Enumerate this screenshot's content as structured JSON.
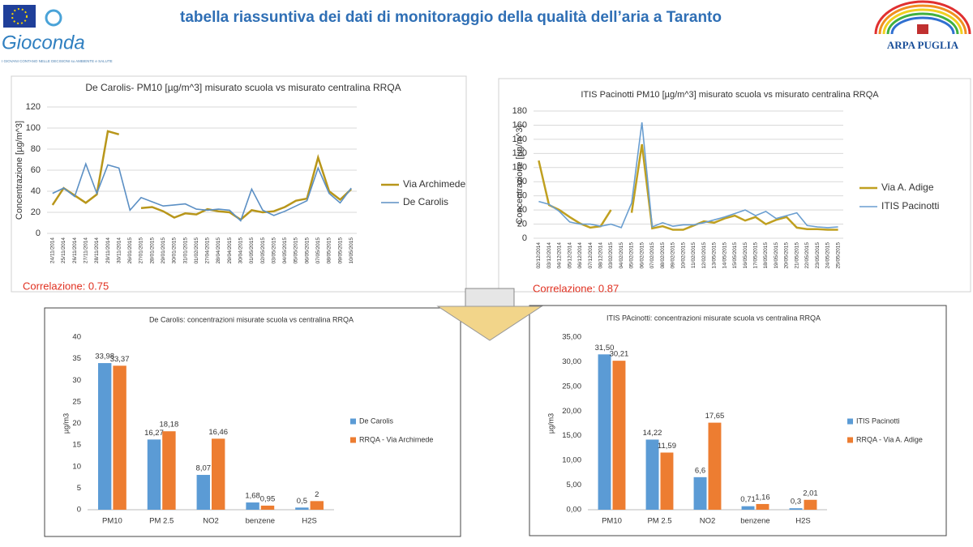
{
  "header": {
    "title": "tabella riassuntiva dei dati di monitoraggio della qualità dell’aria a Taranto",
    "logo_left": "Gioconda",
    "logo_left_tagline": "I GIOVANI CONTANO NELLE DECISIONI su AMBIENTE e SALUTE",
    "logo_right": "ARPA PUGLIA"
  },
  "chart_data": [
    {
      "type": "line",
      "title": "De Carolis- PM10 [µg/m^3] misurato scuola vs  misurato centralina RRQA",
      "y_label": "Concentrazione  [µg/m^3]",
      "annotation": "Correlazione: 0.75",
      "grid": true,
      "legend": "right",
      "categories": [
        "24/11/2014",
        "25/11/2014",
        "26/11/2014",
        "27/11/2014",
        "28/11/2014",
        "29/11/2014",
        "30/11/2014",
        "26/01/2015",
        "27/01/2015",
        "28/01/2015",
        "29/01/2015",
        "30/01/2015",
        "31/01/2015",
        "01/02/2015",
        "27/04/2015",
        "28/04/2015",
        "29/04/2015",
        "30/04/2015",
        "01/05/2015",
        "02/05/2015",
        "03/05/2015",
        "04/05/2015",
        "05/05/2015",
        "06/05/2015",
        "07/05/2015",
        "08/05/2015",
        "09/05/2015",
        "10/05/2015"
      ],
      "series": [
        {
          "name": "Via Archimede",
          "color": "#b8961a",
          "values": [
            27,
            43,
            36,
            29,
            37,
            97,
            94,
            null,
            24,
            25,
            21,
            15,
            19,
            18,
            23,
            21,
            20,
            13,
            22,
            20,
            21,
            25,
            31,
            33,
            72,
            40,
            32,
            42
          ]
        },
        {
          "name": "De Carolis",
          "color": "#5b8fc4",
          "values": [
            38,
            43,
            35,
            66,
            38,
            65,
            62,
            22,
            34,
            30,
            26,
            27,
            28,
            23,
            22,
            23,
            22,
            12,
            42,
            22,
            17,
            21,
            26,
            31,
            62,
            38,
            29,
            43
          ]
        }
      ],
      "ylim": [
        0,
        120
      ],
      "yticks": [
        0,
        20,
        40,
        60,
        80,
        100,
        120
      ]
    },
    {
      "type": "line",
      "title": "ITIS Pacinotti PM10 [µg/m^3]  misurato scuola vs  misurato centralina RRQA",
      "y_label": "Concentrazione  [µg/m^3]",
      "annotation": "Correlazione: 0.87",
      "grid": true,
      "legend": "right",
      "categories": [
        "02/12/2014",
        "03/12/2014",
        "04/12/2014",
        "05/12/2014",
        "06/12/2014",
        "07/12/2014",
        "08/12/2014",
        "03/02/2015",
        "04/02/2015",
        "05/02/2015",
        "06/02/2015",
        "07/02/2015",
        "08/02/2015",
        "09/02/2015",
        "10/02/2015",
        "11/02/2015",
        "12/02/2015",
        "13/05/2015",
        "14/05/2015",
        "15/05/2015",
        "16/05/2015",
        "17/05/2015",
        "18/05/2015",
        "19/05/2015",
        "20/05/2015",
        "21/05/2015",
        "22/05/2015",
        "23/05/2015",
        "24/05/2015",
        "25/05/2015"
      ],
      "series": [
        {
          "name": "Via A. Adige",
          "color": "#c0a020",
          "values": [
            110,
            47,
            40,
            30,
            21,
            15,
            17,
            40,
            null,
            36,
            133,
            14,
            17,
            12,
            12,
            18,
            24,
            22,
            28,
            32,
            25,
            30,
            20,
            26,
            30,
            15,
            13,
            13,
            12,
            12
          ]
        },
        {
          "name": "ITIS Pacinotti",
          "color": "#6a9ed0",
          "values": [
            52,
            48,
            38,
            23,
            20,
            20,
            17,
            20,
            15,
            50,
            164,
            16,
            22,
            17,
            19,
            19,
            22,
            26,
            30,
            35,
            40,
            32,
            38,
            28,
            32,
            36,
            18,
            16,
            15,
            16
          ]
        }
      ],
      "ylim": [
        0,
        180
      ],
      "yticks": [
        0,
        20,
        40,
        60,
        80,
        100,
        120,
        140,
        160,
        180
      ]
    },
    {
      "type": "bar",
      "title": "De Carolis: concentrazioni misurate scuola vs centralina RRQA",
      "y_label": "µg/m3",
      "grid": false,
      "legend": "right",
      "categories": [
        "PM10",
        "PM 2.5",
        "NO2",
        "benzene",
        "H2S"
      ],
      "series": [
        {
          "name": "De Carolis",
          "color": "#5b9bd5",
          "values": [
            33.98,
            16.27,
            8.07,
            1.68,
            0.5
          ],
          "value_labels": [
            "33,98",
            "16,27",
            "8,07",
            "1,68",
            "0,5"
          ]
        },
        {
          "name": "RRQA - Via Archimede",
          "color": "#ed7d31",
          "values": [
            33.37,
            18.18,
            16.46,
            0.95,
            2
          ],
          "value_labels": [
            "33,37",
            "18,18",
            "16,46",
            "0,95",
            "2"
          ]
        }
      ],
      "ylim": [
        0,
        40
      ],
      "yticks": [
        0,
        5,
        10,
        15,
        20,
        25,
        30,
        35,
        40
      ]
    },
    {
      "type": "bar",
      "title": "ITIS PAcinotti: concentrazioni misurate scuola vs centralina RRQA",
      "y_label": "µg/m3",
      "grid": false,
      "legend": "right",
      "categories": [
        "PM10",
        "PM 2.5",
        "NO2",
        "benzene",
        "H2S"
      ],
      "series": [
        {
          "name": "ITIS Pacinotti",
          "color": "#5b9bd5",
          "values": [
            31.5,
            14.22,
            6.6,
            0.71,
            0.3
          ],
          "value_labels": [
            "31,50",
            "14,22",
            "6,6",
            "0,71",
            "0,3"
          ]
        },
        {
          "name": "RRQA - Via A. Adige",
          "color": "#ed7d31",
          "values": [
            30.21,
            11.59,
            17.65,
            1.16,
            2.01
          ],
          "value_labels": [
            "30,21",
            "11,59",
            "17,65",
            "1,16",
            "2,01"
          ]
        }
      ],
      "ylim": [
        0,
        35
      ],
      "yticks": [
        {
          "value": 0,
          "label": "0,00"
        },
        {
          "value": 5,
          "label": "5,00"
        },
        {
          "value": 10,
          "label": "10,00"
        },
        {
          "value": 15,
          "label": "15,00"
        },
        {
          "value": 20,
          "label": "20,00"
        },
        {
          "value": 25,
          "label": "25,00"
        },
        {
          "value": 30,
          "label": "30,00"
        },
        {
          "value": 35,
          "label": "35,00"
        }
      ]
    }
  ]
}
